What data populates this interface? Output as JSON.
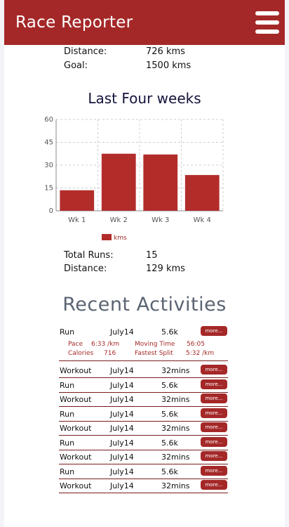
{
  "header": {
    "title": "Race Reporter"
  },
  "summary": {
    "distance_label": "Distance:",
    "distance_value": "726 kms",
    "goal_label": "Goal:",
    "goal_value": "1500 kms"
  },
  "chart_data": {
    "type": "bar",
    "title": "Last Four weeks",
    "categories": [
      "Wk 1",
      "Wk 2",
      "Wk 3",
      "Wk 4"
    ],
    "series": [
      {
        "name": "kms",
        "values": [
          13.5,
          37.5,
          37,
          23.5
        ]
      }
    ],
    "yticks": [
      0,
      15,
      30,
      45,
      60
    ],
    "ylim": [
      0,
      60
    ],
    "grid": true,
    "legend": "bottom",
    "color": "#b22d2a"
  },
  "week_stats": {
    "runs_label": "Total Runs:",
    "runs_value": "15",
    "distance_label": "Distance:",
    "distance_value": "129 kms"
  },
  "recent": {
    "title": "Recent Activities",
    "more_label": "more...",
    "detail": {
      "pace_label": "Pace",
      "pace_value": "6:33 /km",
      "moving_label": "Moving Time",
      "moving_value": "56:05",
      "calories_label": "Calories",
      "calories_value": "716",
      "split_label": "Fastest Split",
      "split_value": "5:32 /km"
    },
    "activities": [
      {
        "type": "Run",
        "date": "July14",
        "amount": "5.6k"
      },
      {
        "type": "Workout",
        "date": "July14",
        "amount": "32mins"
      },
      {
        "type": "Run",
        "date": "July14",
        "amount": "5.6k"
      },
      {
        "type": "Workout",
        "date": "July14",
        "amount": "32mins"
      },
      {
        "type": "Run",
        "date": "July14",
        "amount": "5.6k"
      },
      {
        "type": "Workout",
        "date": "July14",
        "amount": "32mins"
      },
      {
        "type": "Run",
        "date": "July14",
        "amount": "5.6k"
      },
      {
        "type": "Workout",
        "date": "July14",
        "amount": "32mins"
      },
      {
        "type": "Run",
        "date": "July14",
        "amount": "5.6k"
      },
      {
        "type": "Workout",
        "date": "July14",
        "amount": "32mins"
      }
    ]
  }
}
